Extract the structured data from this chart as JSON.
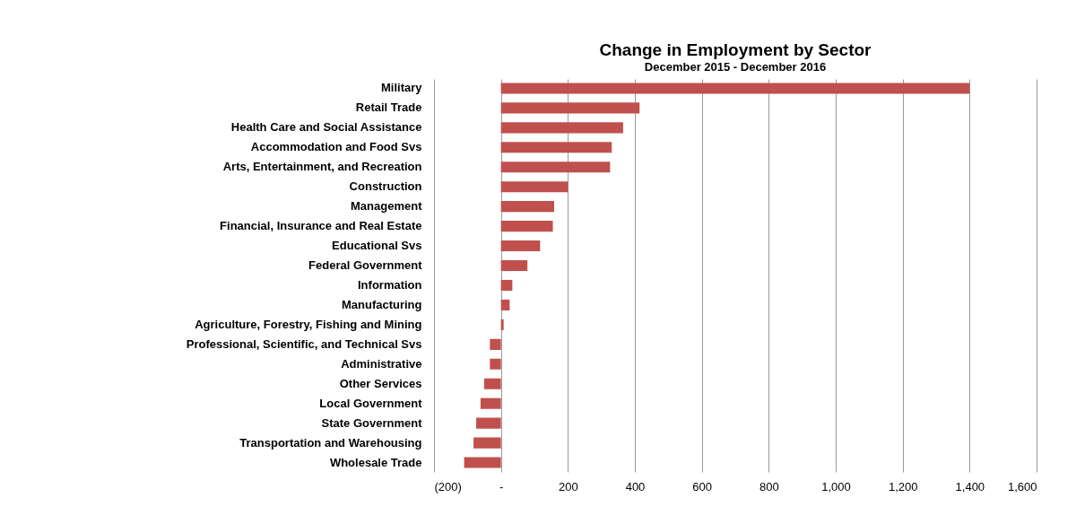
{
  "chart_data": {
    "type": "bar",
    "orientation": "horizontal",
    "title": "Change in Employment by Sector",
    "subtitle": "December 2015  - December 2016",
    "categories": [
      "Military",
      "Retail Trade",
      "Health Care and Social Assistance",
      "Accommodation and Food Svs",
      "Arts, Entertainment, and Recreation",
      "Construction",
      "Management",
      "Financial, Insurance and Real Estate",
      "Educational  Svs",
      "Federal Government",
      "Information",
      "Manufacturing",
      "Agriculture, Forestry, Fishing and Mining",
      "Professional, Scientific, and Technical Svs",
      "Administrative",
      "Other Services",
      "Local Government",
      "State Government",
      "Transportation and Warehousing",
      "Wholesale Trade"
    ],
    "values": [
      1400,
      414,
      365,
      331,
      326,
      200,
      159,
      155,
      117,
      79,
      34,
      26,
      8,
      -33,
      -33,
      -50,
      -61,
      -74,
      -82,
      -110
    ],
    "color": "#c0504d",
    "xlim": [
      -200,
      1600
    ],
    "xticks": [
      {
        "value": -200,
        "label": "(200)"
      },
      {
        "value": 0,
        "label": "-"
      },
      200,
      400,
      600,
      800,
      {
        "value": 1000,
        "label": "1,000"
      },
      {
        "value": 1200,
        "label": "1,200"
      },
      {
        "value": 1400,
        "label": "1,400"
      },
      {
        "value": 1600,
        "label": "1,600"
      }
    ],
    "grid": "x"
  }
}
